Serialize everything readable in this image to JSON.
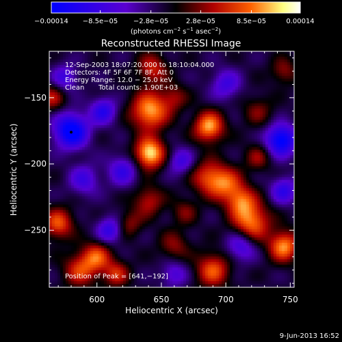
{
  "chart_data": {
    "type": "heatmap",
    "title": "Reconstructed RHESSI Image",
    "xlabel": "Heliocentric X (arcsec)",
    "ylabel": "Heliocentric Y (arcsec)",
    "xlim": [
      563,
      753
    ],
    "ylim": [
      -293,
      -115
    ],
    "x_ticks": [
      600,
      650,
      700,
      750
    ],
    "x_tick_labels": [
      "600",
      "650",
      "700",
      "750"
    ],
    "y_ticks": [
      -250,
      -200,
      -150
    ],
    "y_tick_labels": [
      "−250",
      "−200",
      "−150"
    ],
    "colorbar": {
      "range": [
        -0.00014,
        0.00014
      ],
      "ticks": [
        -0.00014,
        -8.5e-05,
        -2.8e-05,
        2.8e-05,
        8.5e-05,
        0.00014
      ],
      "tick_labels": [
        "−0.00014",
        "−8.5e−05",
        "−2.8e−05",
        "2.8e−05",
        "8.5e−05",
        "0.00014"
      ],
      "unit_prefix": "(photons cm",
      "unit_exp1": "−2",
      "unit_mid": " s",
      "unit_exp2": "−1",
      "unit_after": " asec",
      "unit_exp3": "−2",
      "unit_suffix": ")",
      "colors": [
        "#0000ff",
        "#5500d0",
        "#000000",
        "#b00000",
        "#ff6000",
        "#ffff90",
        "#ffffff"
      ]
    },
    "annotations": {
      "time": "12-Sep-2003 18:07:20.000 to 18:10:04.000",
      "detectors": "Detectors: 4F 5F 6F 7F 8F, Att 0",
      "energy": "Energy Range: 12.0 − 25.0 keV",
      "clean": "Clean",
      "counts": "Total counts: 1.90E+03",
      "peak": "Position of Peak = [641,−192]"
    },
    "blobs": [
      {
        "x": 641,
        "y": -192,
        "v": 1.0,
        "s": 8
      },
      {
        "x": 641,
        "y": -160,
        "v": 0.85,
        "s": 10
      },
      {
        "x": 643,
        "y": -128,
        "v": 0.5,
        "s": 8
      },
      {
        "x": 640,
        "y": -228,
        "v": 0.45,
        "s": 8
      },
      {
        "x": 687,
        "y": -172,
        "v": 0.85,
        "s": 8
      },
      {
        "x": 686,
        "y": -210,
        "v": 0.55,
        "s": 9
      },
      {
        "x": 700,
        "y": -215,
        "v": 0.6,
        "s": 9
      },
      {
        "x": 712,
        "y": -228,
        "v": 0.6,
        "s": 8
      },
      {
        "x": 720,
        "y": -244,
        "v": 0.75,
        "s": 10
      },
      {
        "x": 745,
        "y": -262,
        "v": 0.8,
        "s": 8
      },
      {
        "x": 690,
        "y": -280,
        "v": 0.65,
        "s": 9
      },
      {
        "x": 600,
        "y": -270,
        "v": 0.6,
        "s": 8
      },
      {
        "x": 587,
        "y": -280,
        "v": 0.55,
        "s": 9
      },
      {
        "x": 615,
        "y": -283,
        "v": 0.5,
        "s": 7
      },
      {
        "x": 570,
        "y": -245,
        "v": 0.65,
        "s": 8
      },
      {
        "x": 565,
        "y": -150,
        "v": 0.45,
        "s": 7
      },
      {
        "x": 660,
        "y": -150,
        "v": 0.35,
        "s": 7
      },
      {
        "x": 668,
        "y": -236,
        "v": 0.3,
        "s": 7
      },
      {
        "x": 660,
        "y": -262,
        "v": 0.35,
        "s": 8
      },
      {
        "x": 745,
        "y": -130,
        "v": 0.35,
        "s": 7
      },
      {
        "x": 725,
        "y": -160,
        "v": 0.3,
        "s": 8
      },
      {
        "x": 725,
        "y": -195,
        "v": 0.35,
        "s": 7
      },
      {
        "x": 625,
        "y": -245,
        "v": 0.35,
        "s": 7
      },
      {
        "x": 580,
        "y": -175,
        "v": -1.0,
        "s": 9
      },
      {
        "x": 743,
        "y": -182,
        "v": -0.95,
        "s": 8
      },
      {
        "x": 605,
        "y": -160,
        "v": -0.6,
        "s": 7
      },
      {
        "x": 610,
        "y": -250,
        "v": -0.55,
        "s": 7
      },
      {
        "x": 620,
        "y": -205,
        "v": -0.5,
        "s": 8
      },
      {
        "x": 590,
        "y": -212,
        "v": -0.45,
        "s": 8
      },
      {
        "x": 700,
        "y": -140,
        "v": -0.45,
        "s": 8
      },
      {
        "x": 712,
        "y": -262,
        "v": -0.5,
        "s": 8
      },
      {
        "x": 665,
        "y": -198,
        "v": -0.45,
        "s": 7
      },
      {
        "x": 745,
        "y": -220,
        "v": -0.55,
        "s": 7
      },
      {
        "x": 660,
        "y": -283,
        "v": -0.4,
        "s": 7
      },
      {
        "x": 575,
        "y": -135,
        "v": -0.45,
        "s": 7
      }
    ]
  },
  "footer": {
    "timestamp": "9-Jun-2013 16:52"
  }
}
